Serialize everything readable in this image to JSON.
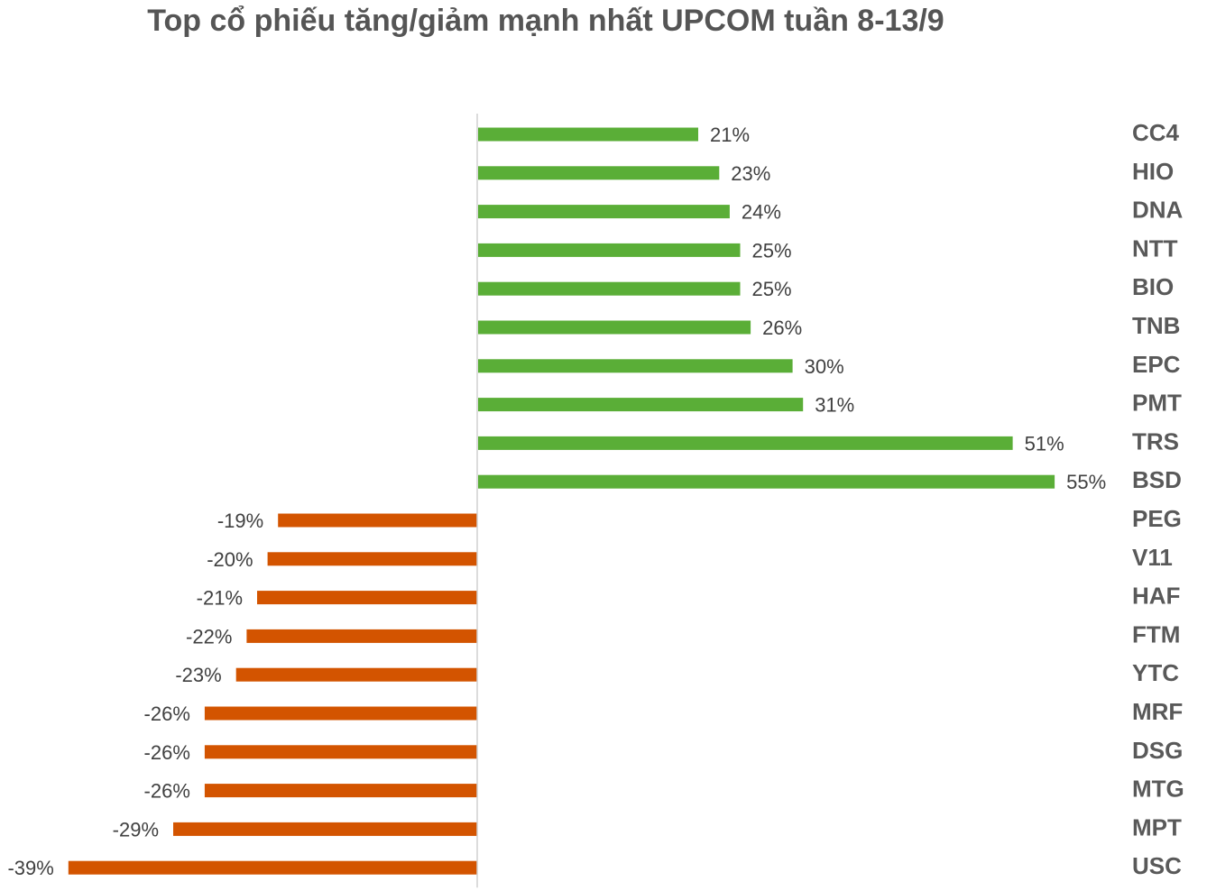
{
  "chart_data": {
    "type": "bar",
    "orientation": "horizontal",
    "title": "Top cổ phiếu tăng/giảm mạnh nhất UPCOM tuần 8-13/9",
    "categories": [
      "CC4",
      "HIO",
      "DNA",
      "NTT",
      "BIO",
      "TNB",
      "EPC",
      "PMT",
      "TRS",
      "BSD",
      "PEG",
      "V11",
      "HAF",
      "FTM",
      "YTC",
      "MRF",
      "DSG",
      "MTG",
      "MPT",
      "USC"
    ],
    "values": [
      21,
      23,
      24,
      25,
      25,
      26,
      30,
      31,
      51,
      55,
      -19,
      -20,
      -21,
      -22,
      -23,
      -26,
      -26,
      -26,
      -29,
      -39
    ],
    "value_labels": [
      "21%",
      "23%",
      "24%",
      "25%",
      "25%",
      "26%",
      "30%",
      "31%",
      "51%",
      "55%",
      "-19%",
      "-20%",
      "-21%",
      "-22%",
      "-23%",
      "-26%",
      "-26%",
      "-26%",
      "-29%",
      "-39%"
    ],
    "xlim": [
      -39,
      55
    ],
    "grid": false,
    "legend": "none",
    "colors": {
      "positive": "#5AAE37",
      "negative": "#D35400",
      "axis": "#d0d0d0"
    }
  }
}
